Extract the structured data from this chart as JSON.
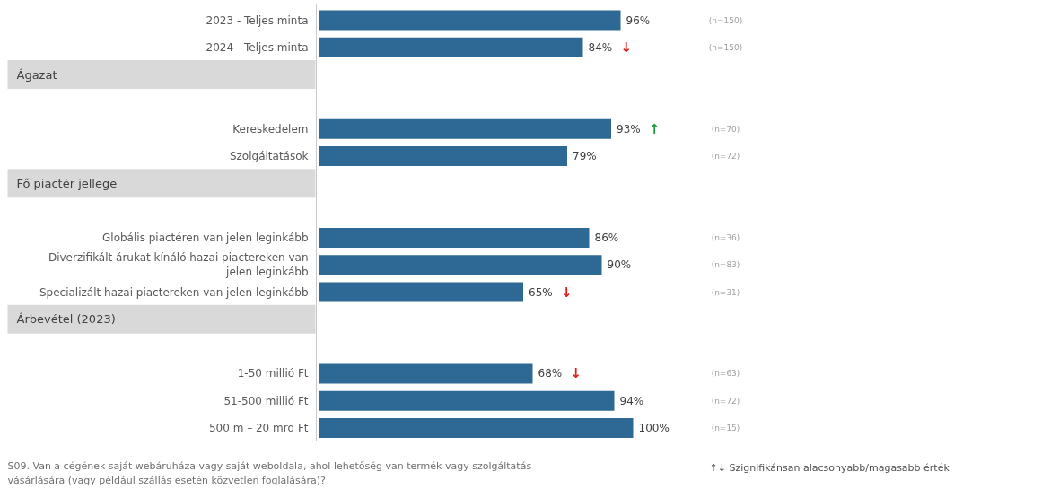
{
  "chart_data": {
    "type": "bar",
    "orientation": "horizontal",
    "categories": [
      "2023 - Teljes minta",
      "2024 - Teljes minta",
      null,
      null,
      "Kereskedelem",
      "Szolgáltatások",
      null,
      null,
      "Globális piactéren van jelen leginkább",
      "Diverzifikált árukat kínáló hazai piactereken van jelen leginkább",
      "Specializált hazai piactereken van jelen leginkább",
      null,
      null,
      "1-50 millió Ft",
      "51-500 millió Ft",
      "500 m – 20 mrd Ft"
    ],
    "series": [
      {
        "color": "#2e6894",
        "values": [
          96,
          84,
          null,
          null,
          93,
          79,
          null,
          null,
          86,
          90,
          65,
          null,
          null,
          68,
          94,
          100
        ],
        "value_labels": [
          "96%",
          "84%",
          null,
          null,
          "93%",
          "79%",
          null,
          null,
          "86%",
          "90%",
          "65%",
          null,
          null,
          "68%",
          "94%",
          "100%"
        ]
      }
    ],
    "xlim": [
      0,
      100
    ],
    "annotations": [
      "(n=150)",
      "(n=150)",
      "(n=70)",
      "(n=72)",
      "(n=36)",
      "(n=83)",
      "(n=31)",
      "(n=63)",
      "(n=72)",
      "(n=15)",
      "Ágazat",
      "Fő piactér jellege",
      "Árbevétel (2023)",
      {
        "text": "↓",
        "x": 84,
        "y": "2024 - Teljes minta"
      },
      {
        "text": "↑",
        "x": 93,
        "y": "Kereskedelem"
      },
      {
        "text": "↓",
        "x": 65,
        "y": "Specializált hazai piactereken van jelen leginkább"
      },
      {
        "text": "↓",
        "x": 68,
        "y": "1-50 millió Ft"
      },
      "S09. Van a cégének saját webáruháza vagy saját weboldala, ahol lehetőség van termék vagy szolgáltatás vásárlására (vagy például szállás esetén közvetlen foglalására)?",
      "↑↓ Szignifikánsan alacsonyabb/magasabb érték"
    ]
  }
}
